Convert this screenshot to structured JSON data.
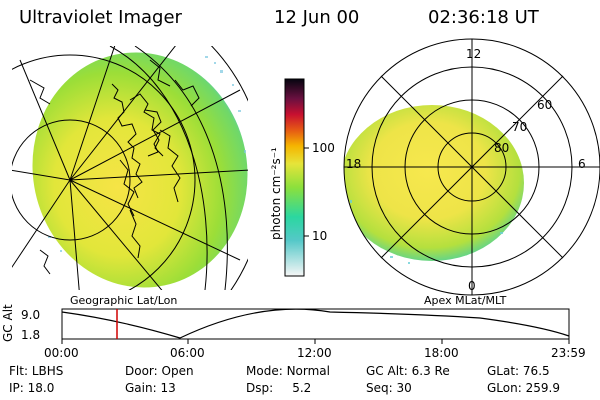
{
  "header": {
    "title": "Ultraviolet Imager",
    "date": "12 Jun 00",
    "time": "02:36:18 UT"
  },
  "left_panel": {
    "label": "Geographic Lat/Lon"
  },
  "right_panel": {
    "label": "Apex MLat/MLT",
    "mlt_labels": {
      "top": "12",
      "left": "18",
      "right": "6",
      "bottom": "0"
    },
    "lat_labels": [
      "60",
      "70",
      "80"
    ]
  },
  "colorbar": {
    "unit_label": "photon cm⁻²s⁻¹",
    "ticks": [
      "100",
      "10"
    ],
    "scale": "log",
    "colors": [
      "#f2f2f2",
      "#55c8c8",
      "#2bd7a0",
      "#8ce03c",
      "#d8e83a",
      "#f5e24c",
      "#f5a000",
      "#d83a1a",
      "#c01040",
      "#4a1040",
      "#050510"
    ]
  },
  "altitude_plot": {
    "ylabel": "GC Alt",
    "yticks": [
      "9.0",
      "1.8"
    ],
    "xticks": [
      "00:00",
      "06:00",
      "12:00",
      "18:00",
      "23:59"
    ],
    "marker_time": "02:36",
    "marker_color": "#d00000"
  },
  "status": {
    "row1": [
      {
        "label": "Flt:",
        "value": "LBHS"
      },
      {
        "label": "Door:",
        "value": "Open"
      },
      {
        "label": "Mode:",
        "value": "Normal"
      },
      {
        "label": "GC Alt:",
        "value": "6.3 Re"
      },
      {
        "label": "GLat:",
        "value": "76.5"
      }
    ],
    "row2": [
      {
        "label": "IP:",
        "value": "18.0"
      },
      {
        "label": "Gain:",
        "value": "13"
      },
      {
        "label": "Dsp:",
        "value": "5.2"
      },
      {
        "label": "Seq:",
        "value": "30"
      },
      {
        "label": "GLon:",
        "value": "259.9"
      }
    ]
  }
}
